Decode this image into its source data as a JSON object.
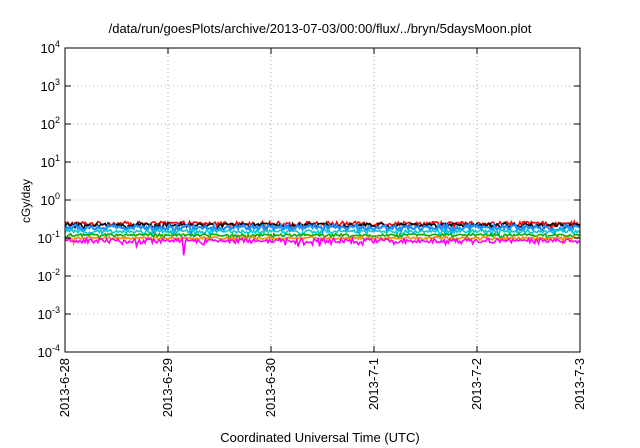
{
  "chart_data": {
    "type": "line",
    "title": "/data/run/goesPlots/archive/2013-07-03/00:00/flux/../bryn/5daysMoon.plot",
    "xlabel": "Coordinated Universal Time (UTC)",
    "ylabel": "cGy/day",
    "yscale": "log",
    "ylim": [
      0.0001,
      10000
    ],
    "xlim": [
      "2013-06-28",
      "2013-07-03"
    ],
    "xticks": [
      "2013-6-28",
      "2013-6-29",
      "2013-6-30",
      "2013-7-1",
      "2013-7-2",
      "2013-7-3"
    ],
    "yticks": [
      {
        "value": 0.0001,
        "base": "10",
        "exp": "-4"
      },
      {
        "value": 0.001,
        "base": "10",
        "exp": "-3"
      },
      {
        "value": 0.01,
        "base": "10",
        "exp": "-2"
      },
      {
        "value": 0.1,
        "base": "10",
        "exp": "-1"
      },
      {
        "value": 1,
        "base": "10",
        "exp": "0"
      },
      {
        "value": 10,
        "base": "10",
        "exp": "1"
      },
      {
        "value": 100,
        "base": "10",
        "exp": "2"
      },
      {
        "value": 1000,
        "base": "10",
        "exp": "3"
      },
      {
        "value": 10000,
        "base": "10",
        "exp": "4"
      }
    ],
    "grid": true,
    "series": [
      {
        "color": "#ff0000",
        "level": 0.24,
        "noise": 0.13
      },
      {
        "color": "#000000",
        "level": 0.22,
        "noise": 0.12
      },
      {
        "color": "#1e90ff",
        "level": 0.19,
        "noise": 0.16
      },
      {
        "color": "#00ced1",
        "level": 0.15,
        "noise": 0.1
      },
      {
        "color": "#00b000",
        "level": 0.12,
        "noise": 0.08
      },
      {
        "color": "#ff8c00",
        "level": 0.1,
        "noise": 0.08
      },
      {
        "color": "#ff00ff",
        "level": 0.085,
        "noise": 0.14
      }
    ]
  }
}
